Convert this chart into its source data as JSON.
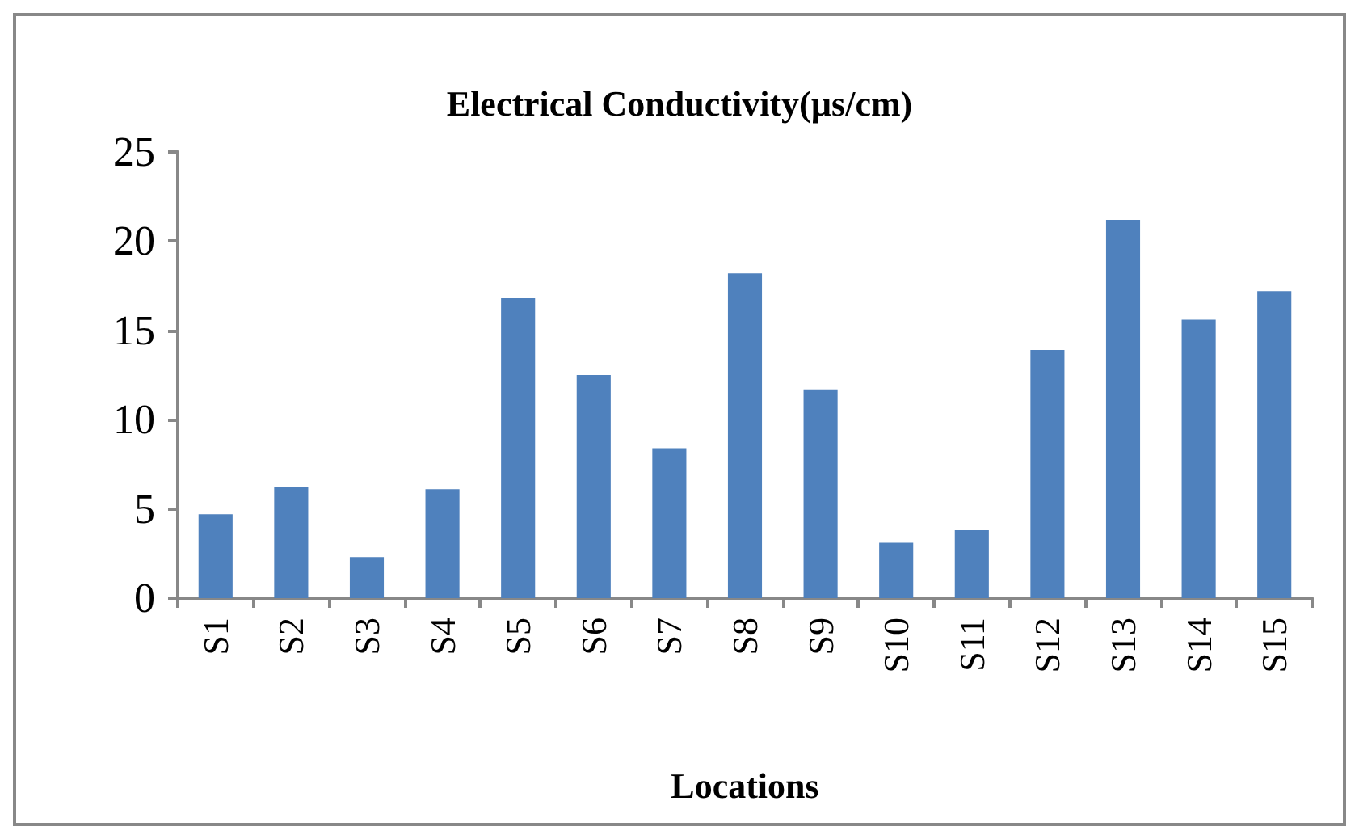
{
  "chart_data": {
    "type": "bar",
    "title": "Electrical Conductivity(µs/cm)",
    "xlabel": "Locations",
    "categories": [
      "S1",
      "S2",
      "S3",
      "S4",
      "S5",
      "S6",
      "S7",
      "S8",
      "S9",
      "S10",
      "S11",
      "S12",
      "S13",
      "S14",
      "S15"
    ],
    "values": [
      4.7,
      6.2,
      2.3,
      6.1,
      16.8,
      12.5,
      8.4,
      18.2,
      11.7,
      3.1,
      3.8,
      13.9,
      21.2,
      15.6,
      17.2
    ],
    "color": "#4f81bd",
    "ylim": [
      0,
      25
    ],
    "yticks": [
      0,
      5,
      10,
      15,
      20,
      25
    ]
  }
}
